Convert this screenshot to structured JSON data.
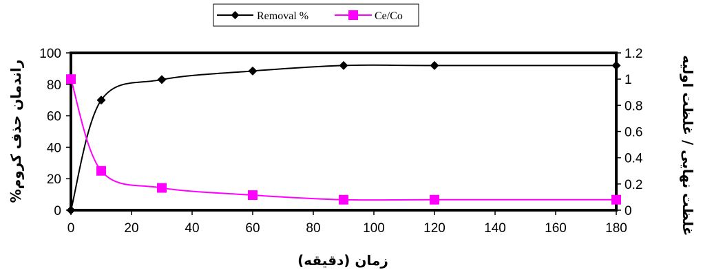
{
  "chart_data": {
    "type": "line",
    "title": "",
    "xlabel": "زمان (دقیقه)",
    "ylabel_left": "راندمان حذف کروم%",
    "ylabel_right": "غلظت نهایی / غلظت اولیه",
    "x": [
      0,
      10,
      30,
      60,
      90,
      120,
      180
    ],
    "xlim": [
      0,
      180
    ],
    "x_ticks": [
      "0",
      "20",
      "40",
      "60",
      "80",
      "100",
      "120",
      "140",
      "160",
      "180"
    ],
    "ylim_left": [
      0,
      100
    ],
    "y_left_ticks": [
      "0",
      "20",
      "40",
      "60",
      "80",
      "100"
    ],
    "ylim_right": [
      0,
      1.2
    ],
    "y_right_ticks": [
      "0",
      "0.2",
      "0.4",
      "0.6",
      "0.8",
      "1",
      "1.2"
    ],
    "grid": false,
    "legend_position": "top-center",
    "series": [
      {
        "name": "Removal %",
        "axis": "left",
        "color": "#000000",
        "marker": "diamond",
        "values": [
          0,
          70,
          83,
          88.5,
          92,
          92,
          92
        ]
      },
      {
        "name": "Ce/Co",
        "axis": "right",
        "color": "#ff00ff",
        "marker": "square",
        "values": [
          1,
          0.3,
          0.17,
          0.115,
          0.08,
          0.08,
          0.08
        ]
      }
    ]
  }
}
